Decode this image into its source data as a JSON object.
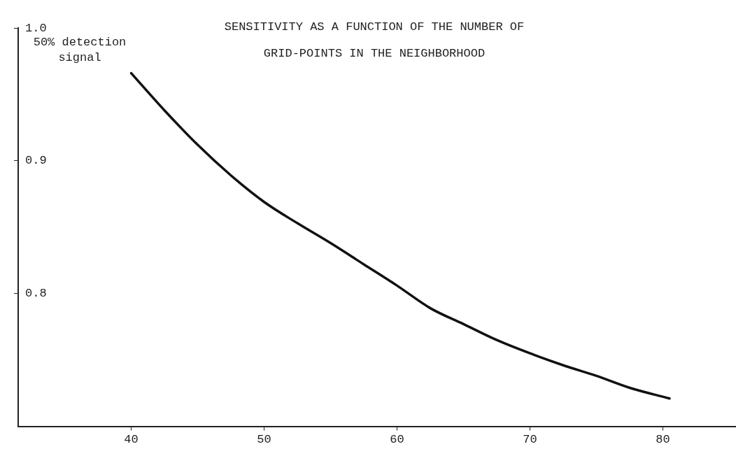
{
  "chart_data": {
    "type": "line",
    "title": "SENSITIVITY AS A FUNCTION OF THE NUMBER OF GRID-POINTS IN THE NEIGHBORHOOD",
    "ylabel": "50% detection signal",
    "x": [
      40,
      42.5,
      45,
      47.5,
      50,
      52.5,
      55,
      57.5,
      60,
      62.5,
      65,
      67.5,
      70,
      72.5,
      75,
      77.5,
      80.5
    ],
    "series": [
      {
        "color": "#111111",
        "values": [
          0.966,
          0.938,
          0.912,
          0.889,
          0.869,
          0.853,
          0.838,
          0.822,
          0.806,
          0.789,
          0.777,
          0.765,
          0.755,
          0.746,
          0.738,
          0.729,
          0.721
        ]
      }
    ],
    "xlim": [
      31.5,
      85.5
    ],
    "xticks": [
      40,
      50,
      60,
      70,
      80
    ],
    "ylim": [
      0.7,
      1.0
    ],
    "yticks": [
      {
        "value": 0.8,
        "label": "0.8"
      },
      {
        "value": 0.9,
        "label": "0.9"
      },
      {
        "value": 1.0,
        "label": "1.0"
      }
    ],
    "grid": false,
    "legend": false,
    "marker": "none",
    "line_style": "solid"
  }
}
